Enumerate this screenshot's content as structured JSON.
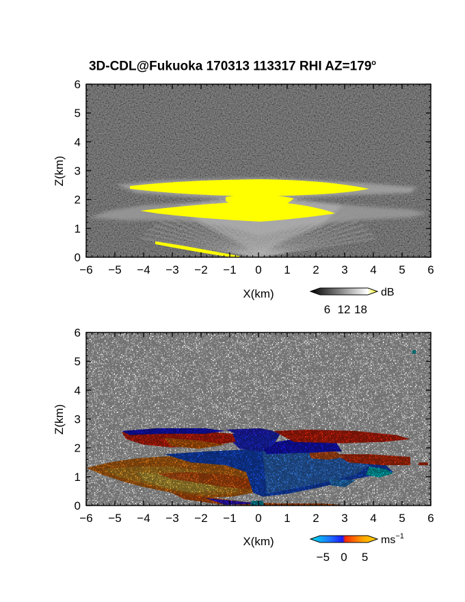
{
  "title_parts": {
    "prefix": "3D-CDL@Fukuoka 170313 113317 RHI AZ=179",
    "degree": "o"
  },
  "chart_data": [
    {
      "type": "heatmap",
      "panel": "reflectivity",
      "xlabel": "X(km)",
      "ylabel": "Z(km)",
      "xlim": [
        -6,
        6
      ],
      "ylim": [
        0,
        6
      ],
      "xticks": [
        -6,
        -5,
        -4,
        -3,
        -2,
        -1,
        0,
        1,
        2,
        3,
        4,
        5,
        6
      ],
      "yticks": [
        0,
        1,
        2,
        3,
        4,
        5,
        6
      ],
      "colorbar": {
        "unit": "dB",
        "ticks": [
          6,
          12,
          18
        ],
        "colors": [
          "#000000",
          "#ffffff",
          "#ffff00"
        ]
      },
      "features": [
        {
          "name": "upper bright layer",
          "x": [
            -4.5,
            5.9
          ],
          "z": [
            2.2,
            2.6
          ],
          "level": "> 18 dB"
        },
        {
          "name": "lower bright layer",
          "x": [
            -4.0,
            5.5
          ],
          "z": [
            1.2,
            1.6
          ],
          "level": "> 18 dB"
        },
        {
          "name": "surface echo",
          "x": [
            -3.5,
            0.1
          ],
          "z": [
            0.0,
            0.5
          ],
          "level": "> 18 dB"
        }
      ]
    },
    {
      "type": "heatmap",
      "panel": "radial velocity",
      "xlabel": "X(km)",
      "ylabel": "Z(km)",
      "xlim": [
        -6,
        6
      ],
      "ylim": [
        0,
        6
      ],
      "xticks": [
        -6,
        -5,
        -4,
        -3,
        -2,
        -1,
        0,
        1,
        2,
        3,
        4,
        5,
        6
      ],
      "yticks": [
        0,
        1,
        2,
        3,
        4,
        5,
        6
      ],
      "colorbar": {
        "unit": "ms",
        "unit_exp": "−1",
        "ticks": [
          -5,
          0,
          5
        ],
        "colors": [
          "#00e5ee",
          "#1e6fff",
          "#1a1aff",
          "#ff2a00",
          "#ffa500",
          "#ffd700"
        ]
      },
      "features": [
        {
          "name": "upper layer",
          "x": [
            -4.8,
            5.9
          ],
          "z": [
            2.1,
            2.6
          ],
          "velocity": "+1 to +3 (receding)"
        },
        {
          "name": "inner core",
          "x": [
            -1.0,
            4.0
          ],
          "z": [
            0.3,
            2.0
          ],
          "velocity": "-3 to -5 (approaching)"
        },
        {
          "name": "left outflow",
          "x": [
            -6.0,
            -0.2
          ],
          "z": [
            0.3,
            1.6
          ],
          "velocity": "+3 to +6"
        },
        {
          "name": "outer right streak",
          "x": [
            3.5,
            5.9
          ],
          "z": [
            1.4,
            1.6
          ],
          "velocity": "+2"
        },
        {
          "name": "isolated echo",
          "x": [
            5.3,
            5.5
          ],
          "z": [
            5.3,
            5.4
          ],
          "velocity": "-5"
        }
      ]
    }
  ]
}
